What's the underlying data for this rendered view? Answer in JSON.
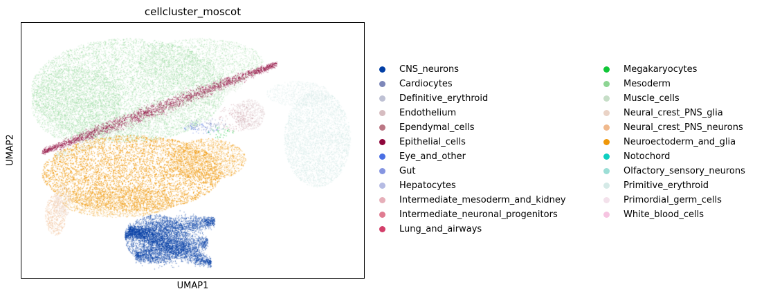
{
  "chart_data": {
    "type": "scatter",
    "title": "cellcluster_moscot",
    "xlabel": "UMAP1",
    "ylabel": "UMAP2",
    "grid": false,
    "legend_position": "right",
    "categories": [
      {
        "name": "CNS_neurons",
        "color": "#023fa5"
      },
      {
        "name": "Cardiocytes",
        "color": "#7d87b9"
      },
      {
        "name": "Definitive_erythroid",
        "color": "#bec1d4"
      },
      {
        "name": "Endothelium",
        "color": "#d6bcc0"
      },
      {
        "name": "Ependymal_cells",
        "color": "#bb7784"
      },
      {
        "name": "Epithelial_cells",
        "color": "#8e063b"
      },
      {
        "name": "Eye_and_other",
        "color": "#4a6fe3"
      },
      {
        "name": "Gut",
        "color": "#8595e1"
      },
      {
        "name": "Hepatocytes",
        "color": "#b5bbe3"
      },
      {
        "name": "Intermediate_mesoderm_and_kidney",
        "color": "#e6afb9"
      },
      {
        "name": "Intermediate_neuronal_progenitors",
        "color": "#e07b91"
      },
      {
        "name": "Lung_and_airways",
        "color": "#d33f6a"
      },
      {
        "name": "Megakaryocytes",
        "color": "#11c638"
      },
      {
        "name": "Mesoderm",
        "color": "#8dd593"
      },
      {
        "name": "Muscle_cells",
        "color": "#c6dec7"
      },
      {
        "name": "Neural_crest_PNS_glia",
        "color": "#ead3c6"
      },
      {
        "name": "Neural_crest_PNS_neurons",
        "color": "#f0b98d"
      },
      {
        "name": "Neuroectoderm_and_glia",
        "color": "#ef9708"
      },
      {
        "name": "Notochord",
        "color": "#0fcfc0"
      },
      {
        "name": "Olfactory_sensory_neurons",
        "color": "#9cded6"
      },
      {
        "name": "Primitive_erythroid",
        "color": "#d5eae7"
      },
      {
        "name": "Primordial_germ_cells",
        "color": "#f3e1eb"
      },
      {
        "name": "White_blood_cells",
        "color": "#f6c4e1"
      }
    ]
  }
}
